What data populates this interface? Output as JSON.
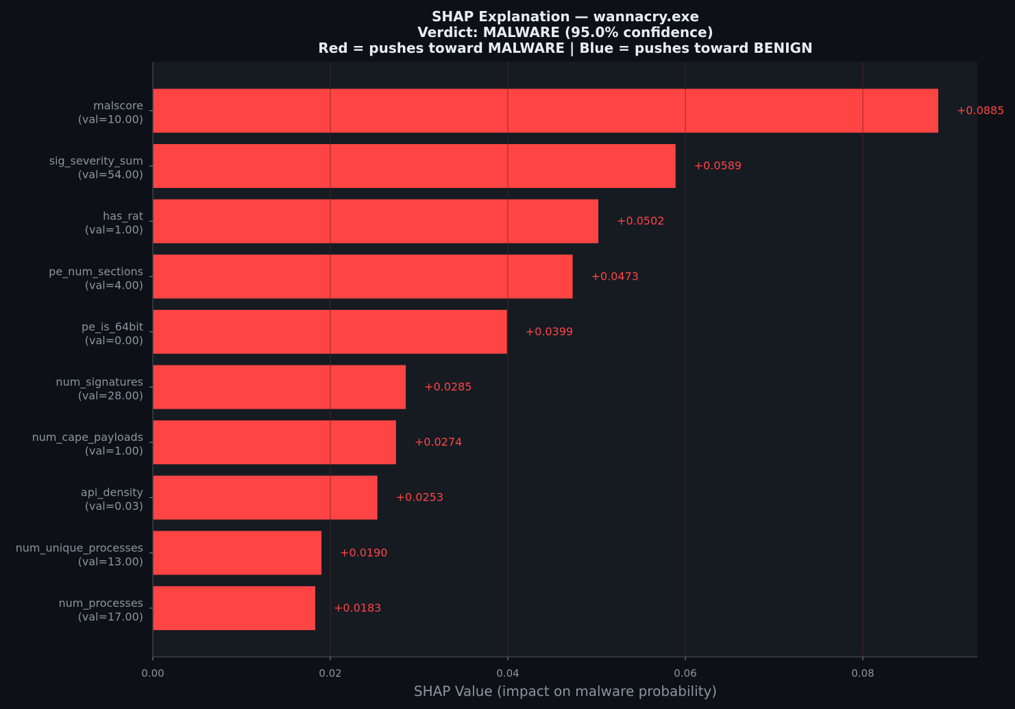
{
  "chart_data": {
    "type": "bar",
    "orientation": "horizontal",
    "title_lines": [
      "SHAP Explanation — wannacry.exe",
      "Verdict: MALWARE (95.0% confidence)",
      "Red = pushes toward MALWARE | Blue = pushes toward BENIGN"
    ],
    "xlabel": "SHAP Value (impact on malware probability)",
    "ylabel": "",
    "xlim": [
      0,
      0.0929
    ],
    "xticks": [
      0.0,
      0.02,
      0.04,
      0.06,
      0.08
    ],
    "xtick_labels": [
      "0.00",
      "0.02",
      "0.04",
      "0.06",
      "0.08"
    ],
    "grid": true,
    "colors": {
      "positive": "#ff4444",
      "negative": "#4488ff",
      "figure_bg": "#0d1117",
      "axes_bg": "#161b22",
      "text": "#e6edf3",
      "muted": "#8b949e",
      "grid": "#30363d"
    },
    "bars": [
      {
        "feature": "malscore",
        "value_label": "(val=10.00)",
        "shap": 0.0885,
        "shap_label": "+0.0885"
      },
      {
        "feature": "sig_severity_sum",
        "value_label": "(val=54.00)",
        "shap": 0.0589,
        "shap_label": "+0.0589"
      },
      {
        "feature": "has_rat",
        "value_label": "(val=1.00)",
        "shap": 0.0502,
        "shap_label": "+0.0502"
      },
      {
        "feature": "pe_num_sections",
        "value_label": "(val=4.00)",
        "shap": 0.0473,
        "shap_label": "+0.0473"
      },
      {
        "feature": "pe_is_64bit",
        "value_label": "(val=0.00)",
        "shap": 0.0399,
        "shap_label": "+0.0399"
      },
      {
        "feature": "num_signatures",
        "value_label": "(val=28.00)",
        "shap": 0.0285,
        "shap_label": "+0.0285"
      },
      {
        "feature": "num_cape_payloads",
        "value_label": "(val=1.00)",
        "shap": 0.0274,
        "shap_label": "+0.0274"
      },
      {
        "feature": "api_density",
        "value_label": "(val=0.03)",
        "shap": 0.0253,
        "shap_label": "+0.0253"
      },
      {
        "feature": "num_unique_processes",
        "value_label": "(val=13.00)",
        "shap": 0.019,
        "shap_label": "+0.0190"
      },
      {
        "feature": "num_processes",
        "value_label": "(val=17.00)",
        "shap": 0.0183,
        "shap_label": "+0.0183"
      }
    ]
  }
}
